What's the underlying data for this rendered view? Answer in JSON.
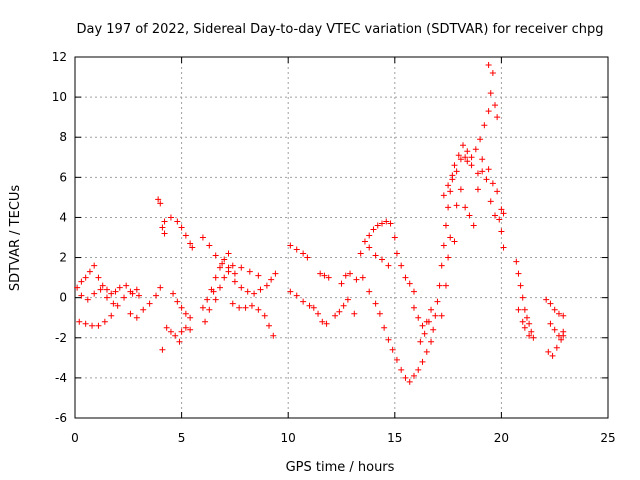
{
  "chart_data": {
    "type": "scatter",
    "title": "Day 197 of 2022, Sidereal Day-to-day VTEC variation (SDTVAR) for receiver chpg",
    "xlabel": "GPS time / hours",
    "ylabel": "SDTVAR / TECUs",
    "xlim": [
      0,
      25
    ],
    "ylim": [
      -6,
      12
    ],
    "xticks": [
      0,
      5,
      10,
      15,
      20,
      25
    ],
    "yticks": [
      -6,
      -4,
      -2,
      0,
      2,
      4,
      6,
      8,
      10,
      12
    ],
    "xtick_labels": [
      "0",
      "5",
      "10",
      "15",
      "20",
      "25"
    ],
    "ytick_labels": [
      "-6",
      "-4",
      "-2",
      "0",
      "2",
      "4",
      "6",
      "8",
      "10",
      "12"
    ],
    "grid": true,
    "marker": "+",
    "color": "#ff0000",
    "series": [
      {
        "name": "SDTVAR",
        "points": [
          [
            0.1,
            0.5
          ],
          [
            0.3,
            0.8
          ],
          [
            0.5,
            1.0
          ],
          [
            0.7,
            1.3
          ],
          [
            0.9,
            1.6
          ],
          [
            1.1,
            1.0
          ],
          [
            1.3,
            0.6
          ],
          [
            1.5,
            0.4
          ],
          [
            1.7,
            0.2
          ],
          [
            1.9,
            0.3
          ],
          [
            0.2,
            -1.2
          ],
          [
            0.5,
            -1.3
          ],
          [
            0.8,
            -1.4
          ],
          [
            1.1,
            -1.4
          ],
          [
            1.4,
            -1.2
          ],
          [
            1.7,
            -0.9
          ],
          [
            2.0,
            -0.4
          ],
          [
            2.3,
            0.0
          ],
          [
            2.6,
            0.3
          ],
          [
            2.9,
            0.4
          ],
          [
            0.3,
            0.1
          ],
          [
            0.6,
            -0.1
          ],
          [
            0.9,
            0.2
          ],
          [
            1.2,
            0.4
          ],
          [
            1.5,
            0.0
          ],
          [
            1.8,
            -0.3
          ],
          [
            2.1,
            0.5
          ],
          [
            2.4,
            0.6
          ],
          [
            2.7,
            0.2
          ],
          [
            3.0,
            0.1
          ],
          [
            2.6,
            -0.8
          ],
          [
            2.9,
            -1.0
          ],
          [
            3.2,
            -0.6
          ],
          [
            3.5,
            -0.3
          ],
          [
            3.8,
            0.1
          ],
          [
            4.0,
            0.5
          ],
          [
            3.9,
            4.9
          ],
          [
            4.0,
            4.7
          ],
          [
            4.1,
            3.5
          ],
          [
            4.2,
            3.2
          ],
          [
            4.3,
            -1.5
          ],
          [
            4.5,
            -1.7
          ],
          [
            4.7,
            -1.9
          ],
          [
            4.9,
            -2.2
          ],
          [
            4.1,
            -2.6
          ],
          [
            5.0,
            -1.7
          ],
          [
            5.2,
            -1.5
          ],
          [
            5.4,
            -1.6
          ],
          [
            4.2,
            3.8
          ],
          [
            4.5,
            4.0
          ],
          [
            4.8,
            3.8
          ],
          [
            5.0,
            3.5
          ],
          [
            5.2,
            3.1
          ],
          [
            5.4,
            2.7
          ],
          [
            5.5,
            2.5
          ],
          [
            4.6,
            0.2
          ],
          [
            4.8,
            -0.2
          ],
          [
            5.0,
            -0.5
          ],
          [
            5.2,
            -0.8
          ],
          [
            5.4,
            -1.0
          ],
          [
            6.0,
            -0.5
          ],
          [
            6.2,
            -0.1
          ],
          [
            6.4,
            0.4
          ],
          [
            6.6,
            1.0
          ],
          [
            6.8,
            1.5
          ],
          [
            7.0,
            1.9
          ],
          [
            7.2,
            2.2
          ],
          [
            6.0,
            3.0
          ],
          [
            6.3,
            2.6
          ],
          [
            6.6,
            2.1
          ],
          [
            6.9,
            1.7
          ],
          [
            7.2,
            1.5
          ],
          [
            7.0,
            1.0
          ],
          [
            6.8,
            0.5
          ],
          [
            6.5,
            0.3
          ],
          [
            6.1,
            -1.2
          ],
          [
            6.3,
            -0.6
          ],
          [
            6.6,
            -0.1
          ],
          [
            7.2,
            1.3
          ],
          [
            7.5,
            1.2
          ],
          [
            7.4,
            -0.3
          ],
          [
            7.7,
            -0.5
          ],
          [
            8.0,
            -0.5
          ],
          [
            8.3,
            -0.4
          ],
          [
            8.6,
            -0.6
          ],
          [
            8.9,
            -0.9
          ],
          [
            9.1,
            -1.4
          ],
          [
            9.3,
            -1.9
          ],
          [
            7.5,
            0.8
          ],
          [
            7.8,
            0.5
          ],
          [
            8.1,
            0.3
          ],
          [
            8.4,
            0.2
          ],
          [
            8.7,
            0.4
          ],
          [
            9.0,
            0.6
          ],
          [
            9.2,
            0.9
          ],
          [
            9.4,
            1.2
          ],
          [
            7.4,
            1.6
          ],
          [
            7.8,
            1.5
          ],
          [
            8.2,
            1.3
          ],
          [
            8.6,
            1.1
          ],
          [
            10.1,
            2.6
          ],
          [
            10.4,
            2.4
          ],
          [
            10.7,
            2.2
          ],
          [
            10.9,
            2.0
          ],
          [
            10.1,
            0.3
          ],
          [
            10.4,
            0.1
          ],
          [
            10.7,
            -0.2
          ],
          [
            11.0,
            -0.4
          ],
          [
            11.2,
            -0.5
          ],
          [
            11.4,
            -0.8
          ],
          [
            11.6,
            -1.2
          ],
          [
            11.8,
            -1.3
          ],
          [
            11.5,
            1.2
          ],
          [
            11.7,
            1.1
          ],
          [
            11.9,
            1.0
          ],
          [
            12.2,
            -0.9
          ],
          [
            12.4,
            -0.7
          ],
          [
            12.6,
            -0.4
          ],
          [
            12.8,
            -0.1
          ],
          [
            12.5,
            0.7
          ],
          [
            12.7,
            1.1
          ],
          [
            12.9,
            1.2
          ],
          [
            13.1,
            -0.8
          ],
          [
            13.2,
            0.9
          ],
          [
            13.4,
            2.2
          ],
          [
            13.6,
            2.8
          ],
          [
            13.8,
            3.1
          ],
          [
            14.0,
            3.4
          ],
          [
            14.2,
            3.6
          ],
          [
            14.4,
            3.7
          ],
          [
            14.6,
            3.8
          ],
          [
            14.8,
            3.7
          ],
          [
            15.0,
            3.0
          ],
          [
            15.1,
            2.2
          ],
          [
            15.3,
            1.6
          ],
          [
            15.5,
            1.0
          ],
          [
            15.7,
            0.7
          ],
          [
            15.9,
            0.3
          ],
          [
            13.8,
            2.5
          ],
          [
            14.1,
            2.1
          ],
          [
            14.4,
            1.9
          ],
          [
            14.7,
            1.6
          ],
          [
            13.5,
            1.0
          ],
          [
            13.8,
            0.3
          ],
          [
            14.1,
            -0.3
          ],
          [
            14.3,
            -0.8
          ],
          [
            14.5,
            -1.5
          ],
          [
            14.7,
            -2.1
          ],
          [
            14.9,
            -2.6
          ],
          [
            15.1,
            -3.1
          ],
          [
            15.3,
            -3.6
          ],
          [
            15.5,
            -4.0
          ],
          [
            15.7,
            -4.2
          ],
          [
            15.9,
            -3.9
          ],
          [
            16.1,
            -3.6
          ],
          [
            16.3,
            -3.2
          ],
          [
            16.5,
            -2.7
          ],
          [
            16.7,
            -2.2
          ],
          [
            16.8,
            -1.6
          ],
          [
            16.9,
            -0.9
          ],
          [
            17.0,
            -0.2
          ],
          [
            17.1,
            0.6
          ],
          [
            17.2,
            1.6
          ],
          [
            17.3,
            2.6
          ],
          [
            17.4,
            3.6
          ],
          [
            17.5,
            4.5
          ],
          [
            17.6,
            5.3
          ],
          [
            17.7,
            6.1
          ],
          [
            17.8,
            6.6
          ],
          [
            18.0,
            7.1
          ],
          [
            18.2,
            7.6
          ],
          [
            18.4,
            7.3
          ],
          [
            18.6,
            7.0
          ],
          [
            18.8,
            7.4
          ],
          [
            19.0,
            7.9
          ],
          [
            19.2,
            8.6
          ],
          [
            19.4,
            9.3
          ],
          [
            19.5,
            10.2
          ],
          [
            19.6,
            11.2
          ],
          [
            19.4,
            11.6
          ],
          [
            19.7,
            9.6
          ],
          [
            19.8,
            9.0
          ],
          [
            15.9,
            -0.5
          ],
          [
            16.1,
            -1.0
          ],
          [
            16.3,
            -1.4
          ],
          [
            16.5,
            -1.2
          ],
          [
            16.7,
            -0.6
          ],
          [
            16.2,
            -2.2
          ],
          [
            16.4,
            -1.8
          ],
          [
            16.6,
            -1.2
          ],
          [
            17.3,
            5.1
          ],
          [
            17.5,
            5.6
          ],
          [
            17.7,
            5.9
          ],
          [
            17.9,
            6.3
          ],
          [
            18.1,
            5.4
          ],
          [
            18.3,
            4.5
          ],
          [
            18.5,
            4.1
          ],
          [
            18.7,
            3.6
          ],
          [
            18.9,
            5.4
          ],
          [
            19.1,
            6.3
          ],
          [
            19.3,
            5.9
          ],
          [
            19.5,
            4.8
          ],
          [
            19.7,
            4.1
          ],
          [
            19.9,
            3.9
          ],
          [
            20.0,
            3.3
          ],
          [
            20.1,
            2.5
          ],
          [
            18.4,
            6.8
          ],
          [
            18.6,
            6.6
          ],
          [
            18.9,
            6.2
          ],
          [
            19.1,
            6.9
          ],
          [
            19.4,
            6.4
          ],
          [
            19.6,
            5.7
          ],
          [
            19.8,
            5.3
          ],
          [
            20.0,
            4.4
          ],
          [
            20.1,
            4.2
          ],
          [
            20.7,
            1.8
          ],
          [
            20.8,
            1.2
          ],
          [
            20.9,
            0.6
          ],
          [
            21.0,
            0.0
          ],
          [
            21.1,
            -0.6
          ],
          [
            21.2,
            -1.0
          ],
          [
            21.3,
            -1.3
          ],
          [
            21.4,
            -1.7
          ],
          [
            20.8,
            -0.6
          ],
          [
            21.0,
            -1.2
          ],
          [
            21.1,
            -1.5
          ],
          [
            21.3,
            -1.9
          ],
          [
            21.5,
            -2.0
          ],
          [
            22.1,
            -0.1
          ],
          [
            22.3,
            -0.3
          ],
          [
            22.5,
            -0.6
          ],
          [
            22.7,
            -0.8
          ],
          [
            22.9,
            -0.9
          ],
          [
            22.2,
            -2.7
          ],
          [
            22.4,
            -2.9
          ],
          [
            22.6,
            -2.5
          ],
          [
            22.8,
            -2.1
          ],
          [
            22.9,
            -1.9
          ],
          [
            22.3,
            -1.3
          ],
          [
            22.5,
            -1.6
          ],
          [
            22.7,
            -1.9
          ],
          [
            22.9,
            -1.7
          ],
          [
            18.1,
            6.9
          ],
          [
            18.3,
            7.0
          ],
          [
            17.9,
            4.6
          ],
          [
            17.8,
            2.8
          ],
          [
            17.6,
            3.0
          ],
          [
            17.5,
            2.0
          ],
          [
            17.4,
            0.6
          ],
          [
            17.2,
            -0.9
          ]
        ]
      }
    ]
  }
}
